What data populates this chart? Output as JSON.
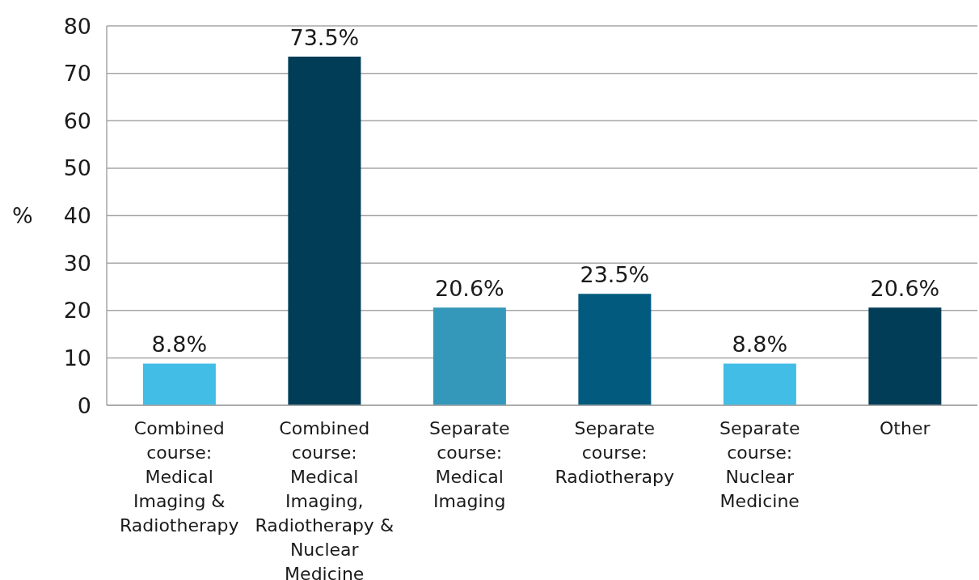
{
  "chart_data": {
    "type": "bar",
    "ylabel": "%",
    "categories": [
      "Combined course: Medical Imaging & Radiotherapy",
      "Combined course: Medical Imaging, Radiotherapy & Nuclear Medicine",
      "Separate course: Medical Imaging",
      "Separate course: Radiotherapy",
      "Separate course: Nuclear Medicine",
      "Other"
    ],
    "values": [
      8.8,
      73.5,
      20.6,
      23.5,
      8.8,
      20.6
    ],
    "colors": [
      "#41bde6",
      "#023d58",
      "#3498bb",
      "#025b7e",
      "#41bde6",
      "#023d58"
    ],
    "value_labels": [
      "8.8%",
      "73.5%",
      "20.6%",
      "23.5%",
      "8.8%",
      "20.6%"
    ],
    "ylim": [
      0,
      80
    ],
    "yticks": [
      0,
      10,
      20,
      30,
      40,
      50,
      60,
      70,
      80
    ],
    "grid": "y"
  }
}
